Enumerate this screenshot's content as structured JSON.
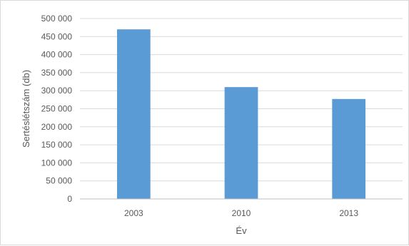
{
  "chart_data": {
    "type": "bar",
    "categories": [
      "2003",
      "2010",
      "2013"
    ],
    "values": [
      470000,
      310000,
      277000
    ],
    "xlabel": "Év",
    "ylabel": "Sertéslétszám (db)",
    "ylim": [
      0,
      500000
    ],
    "y_ticks": [
      "0",
      "50 000",
      "100 000",
      "150 000",
      "200 000",
      "250 000",
      "300 000",
      "350 000",
      "400 000",
      "450 000",
      "500 000"
    ],
    "grid": true,
    "legend": "none",
    "colors": {
      "bar": "#5b9bd5",
      "grid": "#d9d9d9",
      "axis": "#bfbfbf",
      "text": "#595959"
    }
  }
}
